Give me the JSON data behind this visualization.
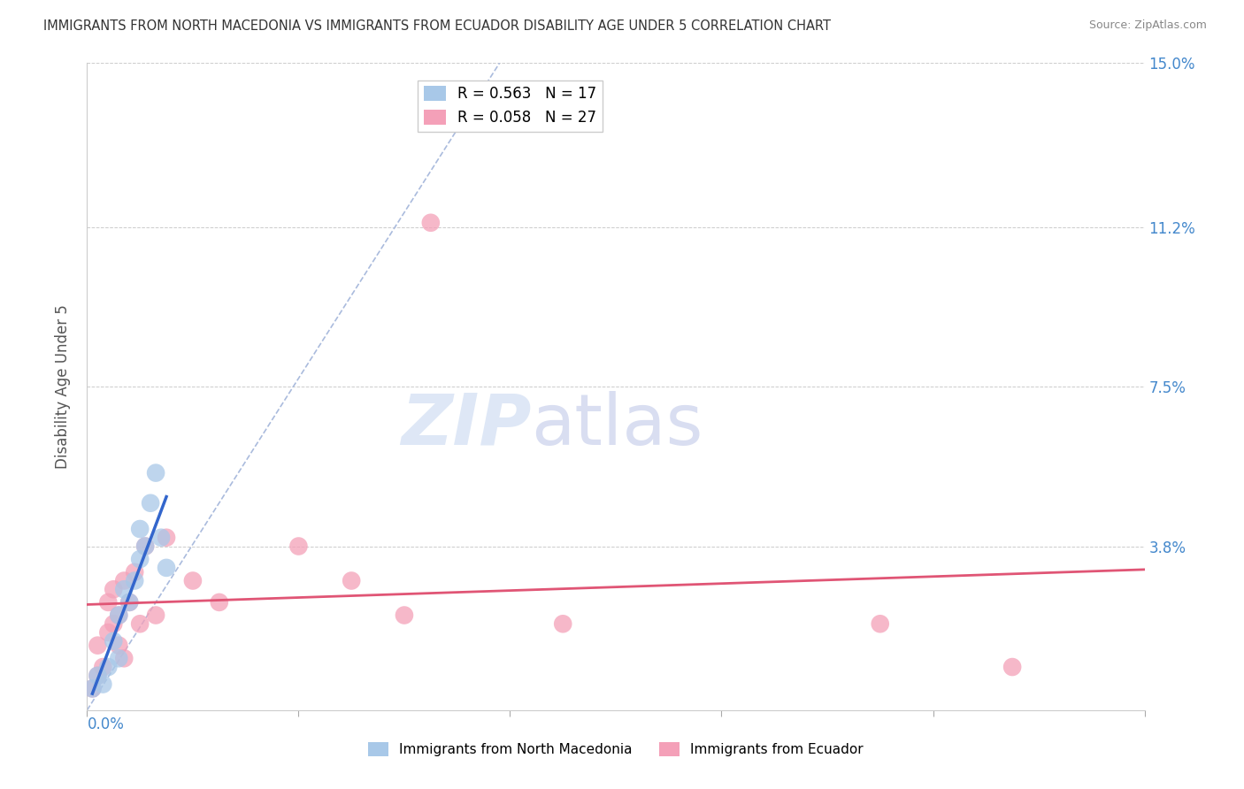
{
  "title": "IMMIGRANTS FROM NORTH MACEDONIA VS IMMIGRANTS FROM ECUADOR DISABILITY AGE UNDER 5 CORRELATION CHART",
  "source": "Source: ZipAtlas.com",
  "ylabel": "Disability Age Under 5",
  "xlim": [
    0.0,
    0.2
  ],
  "ylim": [
    0.0,
    0.15
  ],
  "ytick_positions": [
    0.0,
    0.038,
    0.075,
    0.112,
    0.15
  ],
  "ytick_labels": [
    "",
    "3.8%",
    "7.5%",
    "11.2%",
    "15.0%"
  ],
  "series1_name": "Immigrants from North Macedonia",
  "series1_color": "#a8c8e8",
  "series1_R": 0.563,
  "series1_N": 17,
  "series1_trend_color": "#3366cc",
  "series2_name": "Immigrants from Ecuador",
  "series2_color": "#f4a0b8",
  "series2_R": 0.058,
  "series2_N": 27,
  "series2_trend_color": "#e05575",
  "diagonal_color": "#aabbdd",
  "watermark_zip": "ZIP",
  "watermark_atlas": "atlas",
  "watermark_color_zip": "#c8d8f0",
  "watermark_color_atlas": "#c0c8e8",
  "series1_x": [
    0.001,
    0.002,
    0.003,
    0.004,
    0.005,
    0.006,
    0.006,
    0.007,
    0.008,
    0.009,
    0.01,
    0.01,
    0.011,
    0.012,
    0.013,
    0.014,
    0.015
  ],
  "series1_y": [
    0.005,
    0.008,
    0.006,
    0.01,
    0.016,
    0.012,
    0.022,
    0.028,
    0.025,
    0.03,
    0.035,
    0.042,
    0.038,
    0.048,
    0.055,
    0.04,
    0.033
  ],
  "series2_x": [
    0.001,
    0.002,
    0.002,
    0.003,
    0.004,
    0.004,
    0.005,
    0.005,
    0.006,
    0.006,
    0.007,
    0.007,
    0.008,
    0.009,
    0.01,
    0.011,
    0.013,
    0.015,
    0.02,
    0.025,
    0.04,
    0.05,
    0.06,
    0.065,
    0.09,
    0.15,
    0.175
  ],
  "series2_y": [
    0.005,
    0.008,
    0.015,
    0.01,
    0.018,
    0.025,
    0.02,
    0.028,
    0.015,
    0.022,
    0.03,
    0.012,
    0.025,
    0.032,
    0.02,
    0.038,
    0.022,
    0.04,
    0.03,
    0.025,
    0.038,
    0.03,
    0.022,
    0.113,
    0.02,
    0.02,
    0.01
  ]
}
